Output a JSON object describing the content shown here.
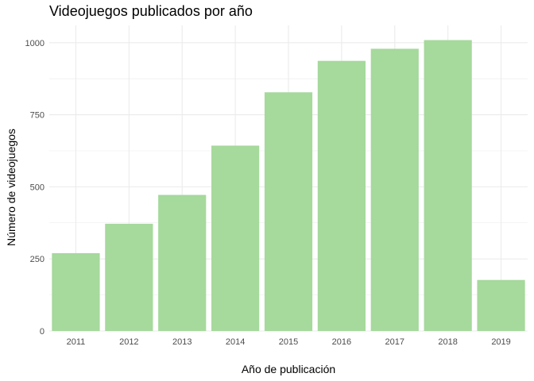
{
  "chart_data": {
    "type": "bar",
    "title": "Videojuegos publicados por año",
    "xlabel": "Año de publicación",
    "ylabel": "Número de videojuegos",
    "categories": [
      "2011",
      "2012",
      "2013",
      "2014",
      "2015",
      "2016",
      "2017",
      "2018",
      "2019"
    ],
    "values": [
      270,
      372,
      472,
      643,
      828,
      937,
      979,
      1009,
      177
    ],
    "y_ticks": [
      0,
      250,
      500,
      750,
      1000
    ],
    "y_tick_labels": [
      "0",
      "250",
      "500",
      "750",
      "1000"
    ],
    "ylim": [
      0,
      1060
    ],
    "grid": true,
    "bar_color": "#a6d99c",
    "background": "#ffffff"
  }
}
